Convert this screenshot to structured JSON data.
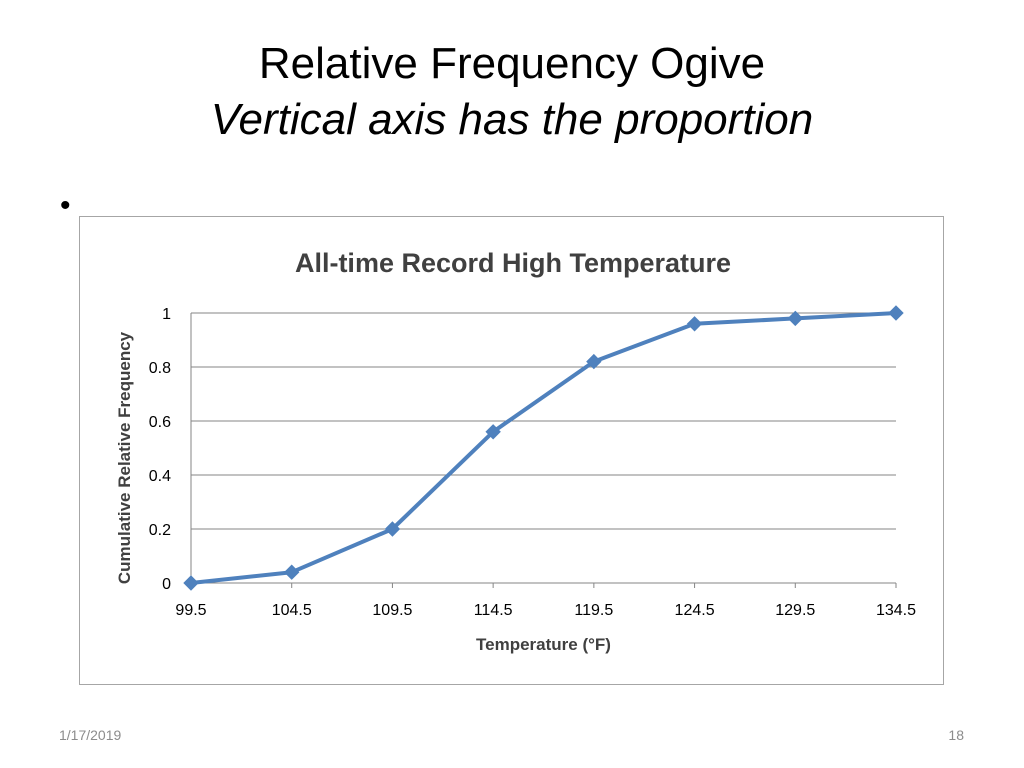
{
  "slide": {
    "title_line1": "Relative Frequency Ogive",
    "title_line2": "Vertical axis has the proportion",
    "bullet": "•",
    "footer_date": "1/17/2019",
    "footer_page": "18"
  },
  "chart_data": {
    "type": "line",
    "title": "All-time Record High Temperature",
    "xlabel": "Temperature (°F)",
    "ylabel": "Cumulative Relative Frequency",
    "x": [
      "99.5",
      "104.5",
      "109.5",
      "114.5",
      "119.5",
      "124.5",
      "129.5",
      "134.5"
    ],
    "series": [
      {
        "values": [
          0,
          0.04,
          0.2,
          0.56,
          0.82,
          0.96,
          0.98,
          1.0
        ],
        "color": "#4f81bd",
        "marker": "diamond"
      }
    ],
    "ylim": [
      0,
      1
    ],
    "yticks": [
      "0",
      "0.2",
      "0.4",
      "0.6",
      "0.8",
      "1"
    ],
    "grid": true,
    "legend": "none"
  }
}
